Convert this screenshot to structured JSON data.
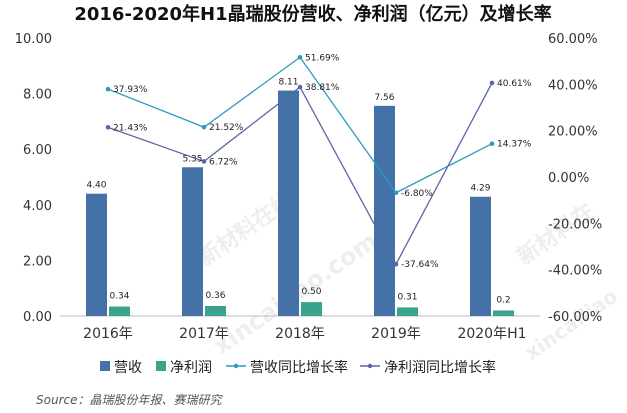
{
  "title": "2016-2020年H1晶瑞股份营收、净利润（亿元）及增长率",
  "source": "Source：晶瑞股份年报、赛瑞研究",
  "watermark": [
    "新材料在线",
    "xincailiao.com",
    "新材料在",
    "xincailiao"
  ],
  "colors": {
    "revenue": "#4472a8",
    "profit": "#3aa38c",
    "revenue_growth": "#2a9bbf",
    "profit_growth": "#5a67a6"
  },
  "chart_data": {
    "type": "bar",
    "categories": [
      "2016年",
      "2017年",
      "2018年",
      "2019年",
      "2020年H1"
    ],
    "series": [
      {
        "name": "营收",
        "type": "bar",
        "axis": "left",
        "values": [
          4.4,
          5.35,
          8.11,
          7.56,
          4.29
        ],
        "labels": [
          "4.40",
          "5.35",
          "8.11",
          "7.56",
          "4.29"
        ]
      },
      {
        "name": "净利润",
        "type": "bar",
        "axis": "left",
        "values": [
          0.34,
          0.36,
          0.5,
          0.31,
          0.2
        ],
        "labels": [
          "0.34",
          "0.36",
          "0.50",
          "0.31",
          "0.2"
        ]
      },
      {
        "name": "营收同比增长率",
        "type": "line",
        "axis": "right",
        "values": [
          37.93,
          21.52,
          51.69,
          -6.8,
          14.37
        ],
        "labels": [
          "37.93%",
          "21.52%",
          "51.69%",
          "-6.80%",
          "14.37%"
        ]
      },
      {
        "name": "净利润同比增长率",
        "type": "line",
        "axis": "right",
        "values": [
          21.43,
          6.72,
          38.81,
          -37.64,
          40.61
        ],
        "labels": [
          "21.43%",
          "6.72%",
          "38.81%",
          "-37.64%",
          "40.61%"
        ]
      }
    ],
    "y_left": {
      "ylim": [
        0,
        10
      ],
      "ticks": [
        "0.00",
        "2.00",
        "4.00",
        "6.00",
        "8.00",
        "10.00"
      ]
    },
    "y_right": {
      "ylim": [
        -60,
        60
      ],
      "ticks": [
        "-60.00%",
        "-40.00%",
        "-20.00%",
        "0.00%",
        "20.00%",
        "40.00%",
        "60.00%"
      ]
    },
    "grid": false,
    "legend": "bottom"
  }
}
